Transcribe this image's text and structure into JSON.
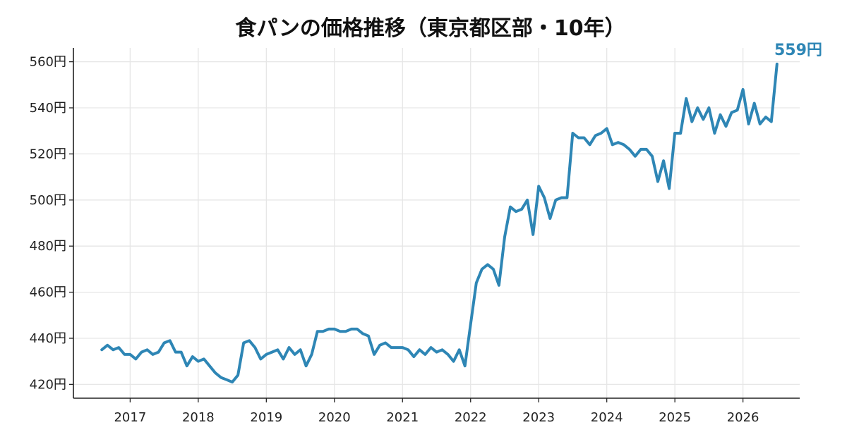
{
  "colors": {
    "line": "#2e86b5",
    "grid": "#e6e6e6",
    "axis": "#222222"
  },
  "chart_data": {
    "type": "line",
    "title": "食パンの価格推移（東京都区部・10年）",
    "xlabel": "",
    "ylabel": "",
    "x_range": [
      "2016-03",
      "2026-11"
    ],
    "ylim": [
      414,
      566
    ],
    "y_ticks": [
      420,
      440,
      460,
      480,
      500,
      520,
      540,
      560
    ],
    "y_tick_labels": [
      "420円",
      "440円",
      "460円",
      "480円",
      "500円",
      "520円",
      "540円",
      "560円"
    ],
    "x_ticks": [
      "2017-01",
      "2018-01",
      "2019-01",
      "2020-01",
      "2021-01",
      "2022-01",
      "2023-01",
      "2024-01",
      "2025-01",
      "2026-01"
    ],
    "x_tick_labels": [
      "2017",
      "2018",
      "2019",
      "2020",
      "2021",
      "2022",
      "2023",
      "2024",
      "2025",
      "2026"
    ],
    "grid": true,
    "end_label": "559円",
    "series": [
      {
        "x": [
          "2016-08",
          "2016-09",
          "2016-10",
          "2016-11",
          "2016-12",
          "2017-01",
          "2017-02",
          "2017-03",
          "2017-04",
          "2017-05",
          "2017-06",
          "2017-07",
          "2017-08",
          "2017-09",
          "2017-10",
          "2017-11",
          "2017-12",
          "2018-01",
          "2018-02",
          "2018-03",
          "2018-04",
          "2018-05",
          "2018-06",
          "2018-07",
          "2018-08",
          "2018-09",
          "2018-10",
          "2018-11",
          "2018-12",
          "2019-01",
          "2019-02",
          "2019-03",
          "2019-04",
          "2019-05",
          "2019-06",
          "2019-07",
          "2019-08",
          "2019-09",
          "2019-10",
          "2019-11",
          "2019-12",
          "2020-01",
          "2020-02",
          "2020-03",
          "2020-04",
          "2020-05",
          "2020-06",
          "2020-07",
          "2020-08",
          "2020-09",
          "2020-10",
          "2020-11",
          "2020-12",
          "2021-01",
          "2021-02",
          "2021-03",
          "2021-04",
          "2021-05",
          "2021-06",
          "2021-07",
          "2021-08",
          "2021-09",
          "2021-10",
          "2021-11",
          "2021-12",
          "2022-01",
          "2022-02",
          "2022-03",
          "2022-04",
          "2022-05",
          "2022-06",
          "2022-07",
          "2022-08",
          "2022-09",
          "2022-10",
          "2022-11",
          "2022-12",
          "2023-01",
          "2023-02",
          "2023-03",
          "2023-04",
          "2023-05",
          "2023-06",
          "2023-07",
          "2023-08",
          "2023-09",
          "2023-10",
          "2023-11",
          "2023-12",
          "2024-01",
          "2024-02",
          "2024-03",
          "2024-04",
          "2024-05",
          "2024-06",
          "2024-07",
          "2024-08",
          "2024-09",
          "2024-10",
          "2024-11",
          "2024-12",
          "2025-01",
          "2025-02",
          "2025-03",
          "2025-04",
          "2025-05",
          "2025-06",
          "2025-07",
          "2025-08",
          "2025-09",
          "2025-10",
          "2025-11",
          "2025-12",
          "2026-01",
          "2026-02",
          "2026-03",
          "2026-04",
          "2026-05",
          "2026-06",
          "2026-07"
        ],
        "values": [
          435,
          437,
          435,
          436,
          433,
          433,
          431,
          434,
          435,
          433,
          434,
          438,
          439,
          434,
          434,
          428,
          432,
          430,
          431,
          428,
          425,
          423,
          422,
          421,
          424,
          438,
          439,
          436,
          431,
          433,
          434,
          435,
          431,
          436,
          433,
          435,
          428,
          433,
          443,
          443,
          444,
          444,
          443,
          443,
          444,
          444,
          442,
          441,
          433,
          437,
          438,
          436,
          436,
          436,
          435,
          432,
          435,
          433,
          436,
          434,
          435,
          433,
          430,
          435,
          428,
          446,
          464,
          470,
          472,
          470,
          463,
          484,
          497,
          495,
          496,
          500,
          485,
          506,
          501,
          492,
          500,
          501,
          501,
          529,
          527,
          527,
          524,
          528,
          529,
          531,
          524,
          525,
          524,
          522,
          519,
          522,
          522,
          519,
          508,
          517,
          505,
          529,
          529,
          544,
          534,
          540,
          535,
          540,
          529,
          537,
          532,
          538,
          539,
          548,
          533,
          542,
          533,
          536,
          534,
          559
        ]
      }
    ]
  }
}
